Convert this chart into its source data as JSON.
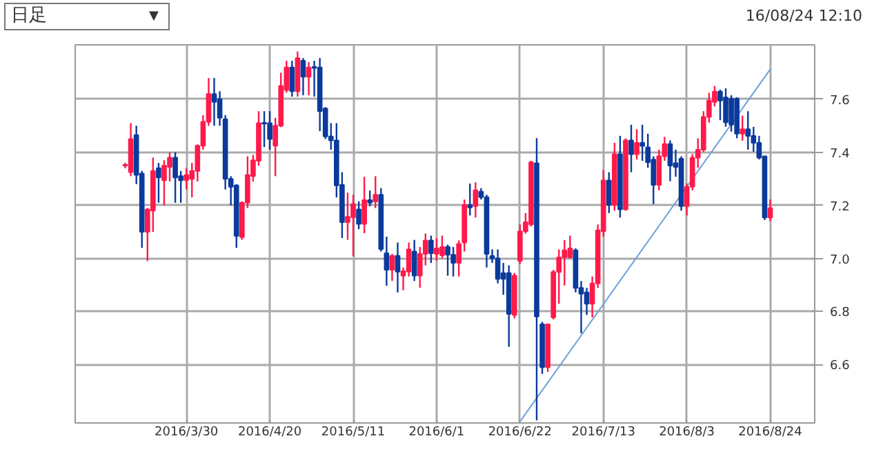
{
  "chart_data": {
    "type": "candlestick",
    "annotations": [
      "日足",
      "▼",
      "16/08/24 12:10"
    ],
    "categories": [
      null,
      null,
      null,
      null,
      null,
      null,
      null,
      null,
      null,
      null,
      null,
      "2016/3/30",
      null,
      null,
      null,
      null,
      null,
      null,
      null,
      null,
      null,
      null,
      null,
      null,
      null,
      null,
      "2016/4/20",
      null,
      null,
      null,
      null,
      null,
      null,
      null,
      null,
      null,
      null,
      null,
      null,
      null,
      null,
      "2016/5/11",
      null,
      null,
      null,
      null,
      null,
      null,
      null,
      null,
      null,
      null,
      null,
      null,
      null,
      null,
      "2016/6/1",
      null,
      null,
      null,
      null,
      null,
      null,
      null,
      null,
      null,
      null,
      null,
      null,
      null,
      null,
      "2016/6/22",
      null,
      null,
      null,
      null,
      null,
      null,
      null,
      null,
      null,
      null,
      null,
      null,
      null,
      null,
      "2016/7/13",
      null,
      null,
      null,
      null,
      null,
      null,
      null,
      null,
      null,
      null,
      null,
      null,
      null,
      null,
      "2016/8/3",
      null,
      null,
      null,
      null,
      null,
      null,
      null,
      null,
      null,
      null,
      null,
      null,
      null,
      null,
      "2016/8/24"
    ],
    "ohlc": [
      [
        7.35,
        7.36,
        7.34,
        7.35
      ],
      [
        7.325,
        7.51,
        7.31,
        7.45
      ],
      [
        7.465,
        7.5,
        7.28,
        7.315
      ],
      [
        7.32,
        7.33,
        7.04,
        7.1
      ],
      [
        7.1,
        7.19,
        6.99,
        7.185
      ],
      [
        7.18,
        7.38,
        7.1,
        7.33
      ],
      [
        7.34,
        7.36,
        7.21,
        7.305
      ],
      [
        7.295,
        7.37,
        7.2,
        7.35
      ],
      [
        7.345,
        7.4,
        7.29,
        7.38
      ],
      [
        7.38,
        7.4,
        7.21,
        7.305
      ],
      [
        7.31,
        7.33,
        7.21,
        7.295
      ],
      [
        7.295,
        7.34,
        7.26,
        7.315
      ],
      [
        7.3,
        7.36,
        7.23,
        7.33
      ],
      [
        7.33,
        7.43,
        7.29,
        7.425
      ],
      [
        7.425,
        7.54,
        7.41,
        7.515
      ],
      [
        7.515,
        7.68,
        7.5,
        7.62
      ],
      [
        7.62,
        7.68,
        7.5,
        7.59
      ],
      [
        7.6,
        7.63,
        7.5,
        7.53
      ],
      [
        7.525,
        7.54,
        7.26,
        7.3
      ],
      [
        7.3,
        7.31,
        7.2,
        7.27
      ],
      [
        7.275,
        7.28,
        7.04,
        7.085
      ],
      [
        7.08,
        7.215,
        7.07,
        7.21
      ],
      [
        7.21,
        7.385,
        7.19,
        7.315
      ],
      [
        7.31,
        7.39,
        7.29,
        7.37
      ],
      [
        7.368,
        7.555,
        7.35,
        7.51
      ],
      [
        7.51,
        7.555,
        7.42,
        7.508
      ],
      [
        7.51,
        7.555,
        7.41,
        7.45
      ],
      [
        7.425,
        7.53,
        7.31,
        7.5
      ],
      [
        7.5,
        7.7,
        7.495,
        7.65
      ],
      [
        7.635,
        7.745,
        7.625,
        7.72
      ],
      [
        7.72,
        7.745,
        7.61,
        7.63
      ],
      [
        7.63,
        7.78,
        7.61,
        7.755
      ],
      [
        7.745,
        7.755,
        7.615,
        7.685
      ],
      [
        7.685,
        7.74,
        7.615,
        7.72
      ],
      [
        7.722,
        7.745,
        7.61,
        7.718
      ],
      [
        7.72,
        7.755,
        7.48,
        7.555
      ],
      [
        7.565,
        7.57,
        7.45,
        7.46
      ],
      [
        7.46,
        7.51,
        7.41,
        7.445
      ],
      [
        7.445,
        7.51,
        7.23,
        7.275
      ],
      [
        7.277,
        7.325,
        7.077,
        7.137
      ],
      [
        7.137,
        7.248,
        7.07,
        7.157
      ],
      [
        7.155,
        7.24,
        7.008,
        7.205
      ],
      [
        7.185,
        7.215,
        7.11,
        7.13
      ],
      [
        7.13,
        7.308,
        7.095,
        7.22
      ],
      [
        7.22,
        7.256,
        7.197,
        7.21
      ],
      [
        7.215,
        7.31,
        7.19,
        7.24
      ],
      [
        7.24,
        7.265,
        7.026,
        7.035
      ],
      [
        7.02,
        7.082,
        6.897,
        6.957
      ],
      [
        6.957,
        7.017,
        6.915,
        7.01
      ],
      [
        7.01,
        7.06,
        6.872,
        6.95
      ],
      [
        6.935,
        6.966,
        6.88,
        6.952
      ],
      [
        6.95,
        7.06,
        6.932,
        7.034
      ],
      [
        7.026,
        7.07,
        6.915,
        6.935
      ],
      [
        6.935,
        7.043,
        6.89,
        7.017
      ],
      [
        7.017,
        7.094,
        6.974,
        7.068
      ],
      [
        7.068,
        7.086,
        6.983,
        7.02
      ],
      [
        7.017,
        7.077,
        6.992,
        7.038
      ],
      [
        7.012,
        7.086,
        7.0,
        7.043
      ],
      [
        7.043,
        7.052,
        6.935,
        7.014
      ],
      [
        7.014,
        7.043,
        6.932,
        6.983
      ],
      [
        6.983,
        7.068,
        6.932,
        7.055
      ],
      [
        7.06,
        7.222,
        7.026,
        7.202
      ],
      [
        7.202,
        7.282,
        7.162,
        7.192
      ],
      [
        7.197,
        7.287,
        7.154,
        7.257
      ],
      [
        7.252,
        7.265,
        7.222,
        7.231
      ],
      [
        7.231,
        7.24,
        6.966,
        7.017
      ],
      [
        7.009,
        7.034,
        6.983,
        7.0
      ],
      [
        7.0,
        7.034,
        6.906,
        6.923
      ],
      [
        6.945,
        6.983,
        6.863,
        6.923
      ],
      [
        6.945,
        6.974,
        6.667,
        6.791
      ],
      [
        6.787,
        6.945,
        6.774,
        6.935
      ],
      [
        6.991,
        7.128,
        6.979,
        7.102
      ],
      [
        7.102,
        7.171,
        7.094,
        7.137
      ],
      [
        7.128,
        7.368,
        7.12,
        7.362
      ],
      [
        7.359,
        7.453,
        6.39,
        6.781
      ],
      [
        6.752,
        6.761,
        6.565,
        6.59
      ],
      [
        6.59,
        6.752,
        6.573,
        6.752
      ],
      [
        6.778,
        6.957,
        6.77,
        6.949
      ],
      [
        6.949,
        7.034,
        6.829,
        7.004
      ],
      [
        7.004,
        7.069,
        6.898,
        7.031
      ],
      [
        7.004,
        7.086,
        7.0,
        7.038
      ],
      [
        7.031,
        7.038,
        6.872,
        6.889
      ],
      [
        6.889,
        6.915,
        6.718,
        6.867
      ],
      [
        6.872,
        6.889,
        6.787,
        6.829
      ],
      [
        6.829,
        6.932,
        6.778,
        6.906
      ],
      [
        6.906,
        7.128,
        6.889,
        7.106
      ],
      [
        7.102,
        7.333,
        7.082,
        7.294
      ],
      [
        7.294,
        7.325,
        7.171,
        7.202
      ],
      [
        7.202,
        7.436,
        7.18,
        7.393
      ],
      [
        7.393,
        7.462,
        7.154,
        7.185
      ],
      [
        7.185,
        7.453,
        7.18,
        7.445
      ],
      [
        7.445,
        7.504,
        7.325,
        7.393
      ],
      [
        7.393,
        7.487,
        7.373,
        7.436
      ],
      [
        7.436,
        7.504,
        7.368,
        7.424
      ],
      [
        7.419,
        7.47,
        7.342,
        7.362
      ],
      [
        7.373,
        7.385,
        7.205,
        7.277
      ],
      [
        7.277,
        7.41,
        7.257,
        7.385
      ],
      [
        7.385,
        7.458,
        7.368,
        7.431
      ],
      [
        7.431,
        7.445,
        7.291,
        7.35
      ],
      [
        7.359,
        7.41,
        7.308,
        7.345
      ],
      [
        7.376,
        7.385,
        7.18,
        7.197
      ],
      [
        7.197,
        7.282,
        7.162,
        7.27
      ],
      [
        7.27,
        7.393,
        7.257,
        7.38
      ],
      [
        7.38,
        7.453,
        7.342,
        7.41
      ],
      [
        7.41,
        7.555,
        7.402,
        7.533
      ],
      [
        7.533,
        7.624,
        7.512,
        7.595
      ],
      [
        7.59,
        7.65,
        7.573,
        7.629
      ],
      [
        7.629,
        7.636,
        7.521,
        7.595
      ],
      [
        7.607,
        7.641,
        7.496,
        7.513
      ],
      [
        7.602,
        7.615,
        7.478,
        7.504
      ],
      [
        7.602,
        7.607,
        7.453,
        7.47
      ],
      [
        7.47,
        7.538,
        7.444,
        7.487
      ],
      [
        7.487,
        7.555,
        7.41,
        7.462
      ],
      [
        7.462,
        7.496,
        7.402,
        7.436
      ],
      [
        7.436,
        7.462,
        7.373,
        7.38
      ],
      [
        7.385,
        7.385,
        7.145,
        7.154
      ],
      [
        7.154,
        7.222,
        7.14,
        7.19
      ]
    ],
    "colors": [
      "#ff1a4b",
      "#ff1a4b",
      "#0b3a9c",
      "#0b3a9c",
      "#ff1a4b",
      "#ff1a4b",
      "#0b3a9c",
      "#ff1a4b",
      "#ff1a4b",
      "#0b3a9c",
      "#0b3a9c",
      "#ff1a4b",
      "#ff1a4b",
      "#ff1a4b",
      "#ff1a4b",
      "#ff1a4b",
      "#0b3a9c",
      "#0b3a9c",
      "#0b3a9c",
      "#0b3a9c",
      "#0b3a9c",
      "#ff1a4b",
      "#ff1a4b",
      "#ff1a4b",
      "#ff1a4b",
      "#0b3a9c",
      "#0b3a9c",
      "#ff1a4b",
      "#ff1a4b",
      "#ff1a4b",
      "#0b3a9c",
      "#ff1a4b",
      "#0b3a9c",
      "#ff1a4b",
      "#0b3a9c",
      "#0b3a9c",
      "#0b3a9c",
      "#0b3a9c",
      "#0b3a9c",
      "#0b3a9c",
      "#ff1a4b",
      "#ff1a4b",
      "#0b3a9c",
      "#ff1a4b",
      "#0b3a9c",
      "#ff1a4b",
      "#0b3a9c",
      "#0b3a9c",
      "#ff1a4b",
      "#0b3a9c",
      "#ff1a4b",
      "#ff1a4b",
      "#0b3a9c",
      "#ff1a4b",
      "#ff1a4b",
      "#0b3a9c",
      "#ff1a4b",
      "#ff1a4b",
      "#0b3a9c",
      "#0b3a9c",
      "#ff1a4b",
      "#ff1a4b",
      "#0b3a9c",
      "#ff1a4b",
      "#0b3a9c",
      "#0b3a9c",
      "#0b3a9c",
      "#0b3a9c",
      "#0b3a9c",
      "#0b3a9c",
      "#ff1a4b",
      "#ff1a4b",
      "#ff1a4b",
      "#ff1a4b",
      "#0b3a9c",
      "#0b3a9c",
      "#ff1a4b",
      "#ff1a4b",
      "#ff1a4b",
      "#ff1a4b",
      "#ff1a4b",
      "#0b3a9c",
      "#0b3a9c",
      "#0b3a9c",
      "#ff1a4b",
      "#ff1a4b",
      "#ff1a4b",
      "#0b3a9c",
      "#ff1a4b",
      "#0b3a9c",
      "#ff1a4b",
      "#0b3a9c",
      "#ff1a4b",
      "#0b3a9c",
      "#0b3a9c",
      "#0b3a9c",
      "#ff1a4b",
      "#ff1a4b",
      "#0b3a9c",
      "#0b3a9c",
      "#0b3a9c",
      "#ff1a4b",
      "#ff1a4b",
      "#ff1a4b",
      "#ff1a4b",
      "#ff1a4b",
      "#ff1a4b",
      "#0b3a9c",
      "#0b3a9c",
      "#0b3a9c",
      "#0b3a9c",
      "#ff1a4b",
      "#0b3a9c",
      "#0b3a9c",
      "#0b3a9c",
      "#0b3a9c",
      "#ff1a4b"
    ],
    "series": [
      {
        "type": "line",
        "x": [
          "2016/6/22",
          "2016/8/24"
        ],
        "values": [
          6.385,
          7.713
        ],
        "color": "#6f9fd8"
      }
    ],
    "ylim": [
      6.38,
      7.805
    ],
    "yticks": [
      6.6,
      6.8,
      {
        "value": 7.0,
        "label": "7.0"
      },
      7.2,
      7.4,
      7.6
    ],
    "grid": true
  }
}
